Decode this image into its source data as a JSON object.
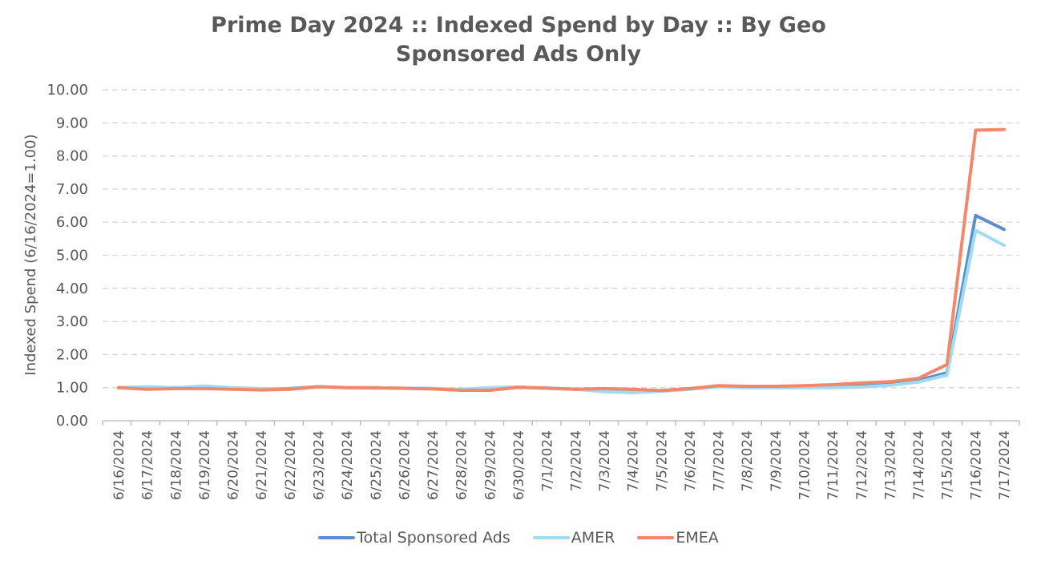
{
  "chart_data": {
    "type": "line",
    "title": "Prime Day 2024 :: Indexed Spend by Day :: By Geo",
    "subtitle": "Sponsored Ads Only",
    "xlabel": "",
    "ylabel": "Indexed Spend (6/16/2024=1.00)",
    "ylim": [
      0,
      10
    ],
    "yticks": [
      "0.00",
      "1.00",
      "2.00",
      "3.00",
      "4.00",
      "5.00",
      "6.00",
      "7.00",
      "8.00",
      "9.00",
      "10.00"
    ],
    "grid": true,
    "legend_position": "bottom",
    "categories": [
      "6/16/2024",
      "6/17/2024",
      "6/18/2024",
      "6/19/2024",
      "6/20/2024",
      "6/21/2024",
      "6/22/2024",
      "6/23/2024",
      "6/24/2024",
      "6/25/2024",
      "6/26/2024",
      "6/27/2024",
      "6/28/2024",
      "6/29/2024",
      "6/30/2024",
      "7/1/2024",
      "7/2/2024",
      "7/3/2024",
      "7/4/2024",
      "7/5/2024",
      "7/6/2024",
      "7/7/2024",
      "7/8/2024",
      "7/9/2024",
      "7/10/2024",
      "7/11/2024",
      "7/12/2024",
      "7/13/2024",
      "7/14/2024",
      "7/15/2024",
      "7/16/2024",
      "7/17/2024"
    ],
    "series": [
      {
        "name": "Total Sponsored Ads",
        "color": "#5b8fc9",
        "values": [
          1.0,
          1.0,
          1.0,
          1.02,
          0.99,
          0.96,
          0.97,
          1.03,
          1.0,
          1.0,
          0.98,
          0.97,
          0.93,
          0.96,
          1.01,
          0.99,
          0.95,
          0.92,
          0.9,
          0.91,
          0.97,
          1.04,
          1.02,
          1.02,
          1.03,
          1.05,
          1.08,
          1.12,
          1.22,
          1.45,
          6.2,
          5.78
        ]
      },
      {
        "name": "AMER",
        "color": "#9fdcf0",
        "values": [
          1.0,
          1.03,
          1.0,
          1.05,
          1.0,
          0.97,
          0.96,
          1.02,
          1.0,
          1.0,
          0.98,
          0.97,
          0.95,
          1.0,
          1.02,
          0.98,
          0.95,
          0.88,
          0.85,
          0.89,
          0.95,
          1.03,
          1.0,
          1.0,
          1.0,
          1.0,
          1.02,
          1.07,
          1.17,
          1.38,
          5.75,
          5.3
        ]
      },
      {
        "name": "EMEA",
        "color": "#f4876a",
        "values": [
          1.0,
          0.95,
          0.97,
          0.97,
          0.95,
          0.93,
          0.95,
          1.03,
          1.0,
          0.99,
          0.98,
          0.96,
          0.92,
          0.92,
          1.01,
          0.98,
          0.95,
          0.97,
          0.95,
          0.91,
          0.97,
          1.06,
          1.04,
          1.04,
          1.06,
          1.09,
          1.14,
          1.18,
          1.28,
          1.7,
          8.78,
          8.8
        ]
      }
    ]
  }
}
